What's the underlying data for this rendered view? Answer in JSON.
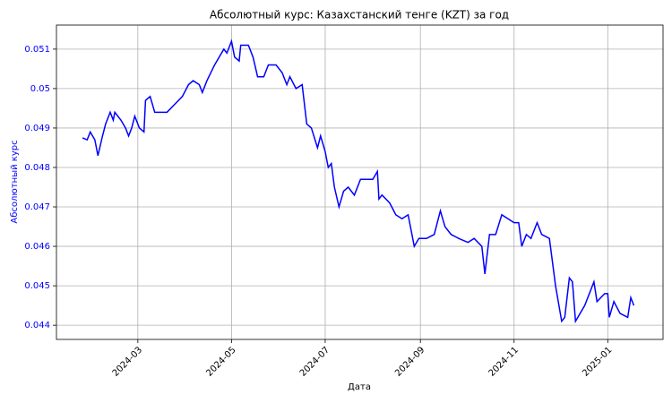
{
  "chart_data": {
    "type": "line",
    "title": "Абсолютный курс: Казахстанский тенге (KZT) за год",
    "x_label": "Дата",
    "y_label": "Абсолютный курс",
    "color": "#0000ff",
    "grid": true,
    "xlim": [
      "2024-01-08",
      "2025-02-06"
    ],
    "ylim": [
      0.04364,
      0.05161
    ],
    "xticks": [
      {
        "value": "2024-03-01",
        "label": "2024-03"
      },
      {
        "value": "2024-05-01",
        "label": "2024-05"
      },
      {
        "value": "2024-07-01",
        "label": "2024-07"
      },
      {
        "value": "2024-09-01",
        "label": "2024-09"
      },
      {
        "value": "2024-11-01",
        "label": "2024-11"
      },
      {
        "value": "2025-01-01",
        "label": "2025-01"
      }
    ],
    "yticks": [
      0.044,
      0.045,
      0.046,
      0.047,
      0.048,
      0.049,
      0.05,
      0.051
    ],
    "x": [
      "2024-01-25",
      "2024-01-28",
      "2024-01-30",
      "2024-02-02",
      "2024-02-04",
      "2024-02-07",
      "2024-02-09",
      "2024-02-12",
      "2024-02-14",
      "2024-02-15",
      "2024-02-19",
      "2024-02-22",
      "2024-02-24",
      "2024-02-26",
      "2024-02-28",
      "2024-03-02",
      "2024-03-05",
      "2024-03-06",
      "2024-03-09",
      "2024-03-12",
      "2024-03-14",
      "2024-03-20",
      "2024-03-25",
      "2024-03-30",
      "2024-04-03",
      "2024-04-06",
      "2024-04-10",
      "2024-04-12",
      "2024-04-15",
      "2024-04-20",
      "2024-04-23",
      "2024-04-26",
      "2024-04-28",
      "2024-05-01",
      "2024-05-03",
      "2024-05-06",
      "2024-05-07",
      "2024-05-12",
      "2024-05-15",
      "2024-05-18",
      "2024-05-22",
      "2024-05-25",
      "2024-05-30",
      "2024-06-03",
      "2024-06-06",
      "2024-06-08",
      "2024-06-12",
      "2024-06-16",
      "2024-06-19",
      "2024-06-22",
      "2024-06-26",
      "2024-06-28",
      "2024-07-01",
      "2024-07-03",
      "2024-07-05",
      "2024-07-07",
      "2024-07-10",
      "2024-07-13",
      "2024-07-16",
      "2024-07-20",
      "2024-07-24",
      "2024-07-28",
      "2024-08-01",
      "2024-08-04",
      "2024-08-05",
      "2024-08-07",
      "2024-08-12",
      "2024-08-16",
      "2024-08-20",
      "2024-08-24",
      "2024-08-28",
      "2024-08-31",
      "2024-09-05",
      "2024-09-10",
      "2024-09-14",
      "2024-09-17",
      "2024-09-21",
      "2024-09-26",
      "2024-10-02",
      "2024-10-06",
      "2024-10-11",
      "2024-10-13",
      "2024-10-16",
      "2024-10-20",
      "2024-10-24",
      "2024-10-28",
      "2024-11-01",
      "2024-11-04",
      "2024-11-06",
      "2024-11-09",
      "2024-11-12",
      "2024-11-16",
      "2024-11-19",
      "2024-11-24",
      "2024-11-28",
      "2024-12-02",
      "2024-12-04",
      "2024-12-07",
      "2024-12-09",
      "2024-12-11",
      "2024-12-17",
      "2024-12-23",
      "2024-12-25",
      "2024-12-30",
      "2025-01-01",
      "2025-01-02",
      "2025-01-05",
      "2025-01-09",
      "2025-01-14",
      "2025-01-16",
      "2025-01-18"
    ],
    "values": [
      0.04875,
      0.0487,
      0.0489,
      0.0487,
      0.0483,
      0.0488,
      0.0491,
      0.0494,
      0.0492,
      0.0494,
      0.0492,
      0.049,
      0.0488,
      0.049,
      0.0493,
      0.049,
      0.0489,
      0.0497,
      0.0498,
      0.0494,
      0.0494,
      0.0494,
      0.0496,
      0.0498,
      0.0501,
      0.0502,
      0.0501,
      0.0499,
      0.0502,
      0.0506,
      0.0508,
      0.051,
      0.0509,
      0.0512,
      0.0508,
      0.0507,
      0.0511,
      0.0511,
      0.0508,
      0.0503,
      0.0503,
      0.0506,
      0.0506,
      0.0504,
      0.0501,
      0.0503,
      0.05,
      0.0501,
      0.0491,
      0.049,
      0.0485,
      0.0488,
      0.0484,
      0.048,
      0.0481,
      0.0475,
      0.047,
      0.0474,
      0.0475,
      0.0473,
      0.0477,
      0.0477,
      0.0477,
      0.0479,
      0.0472,
      0.0473,
      0.0471,
      0.0468,
      0.0467,
      0.0468,
      0.046,
      0.0462,
      0.0462,
      0.0463,
      0.0469,
      0.0465,
      0.0463,
      0.0462,
      0.0461,
      0.0462,
      0.046,
      0.0453,
      0.0463,
      0.0463,
      0.0468,
      0.0467,
      0.0466,
      0.0466,
      0.046,
      0.0463,
      0.0462,
      0.0466,
      0.0463,
      0.0462,
      0.045,
      0.0441,
      0.0442,
      0.0452,
      0.0451,
      0.0441,
      0.0445,
      0.0451,
      0.0446,
      0.0448,
      0.0448,
      0.0442,
      0.0446,
      0.0443,
      0.0442,
      0.0447,
      0.0445
    ]
  }
}
